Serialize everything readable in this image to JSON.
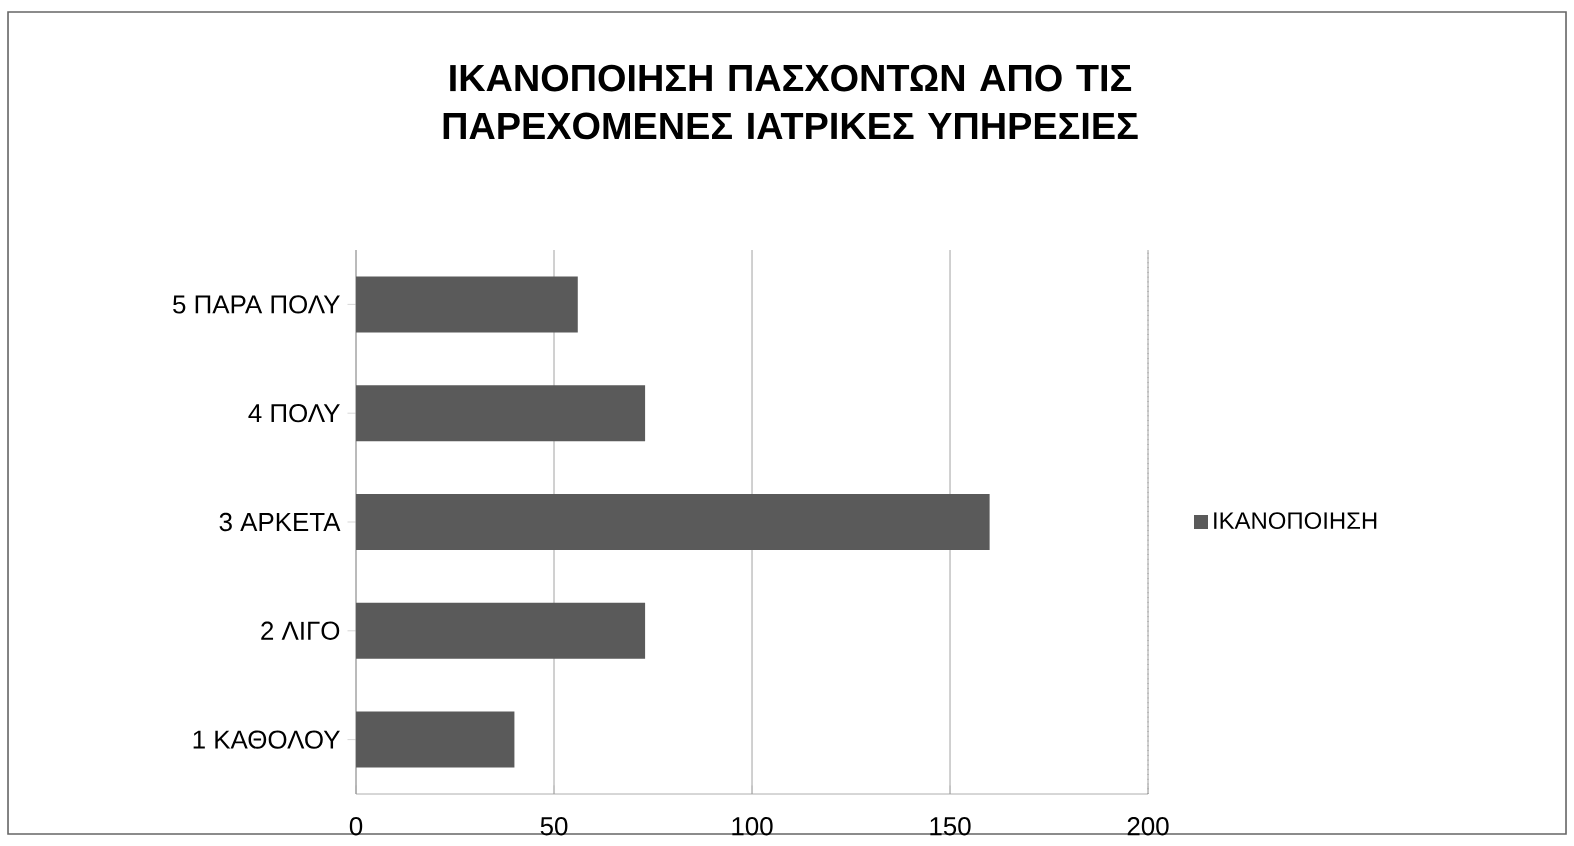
{
  "chart_data": {
    "type": "bar",
    "orientation": "horizontal",
    "title": "ΙΚΑΝΟΠΟΙΗΣΗ ΠΑΣΧΟΝΤΩΝ ΑΠΟ ΤΙΣ ΠΑΡΕΧΟΜΕΝΕΣ ΙΑΤΡΙΚΕΣ ΥΠΗΡΕΣΙΕΣ",
    "categories": [
      "5 ΠΑΡΑ ΠΟΛΥ",
      "4 ΠΟΛΥ",
      "3 ΑΡΚΕΤΑ",
      "2 ΛΙΓΟ",
      "1 ΚΑΘΟΛΟΥ"
    ],
    "series": [
      {
        "name": "ΙΚΑΝΟΠΟΙΗΣΗ",
        "color": "#5a5a5a",
        "values": [
          56,
          73,
          160,
          73,
          40
        ]
      }
    ],
    "xlim": [
      0,
      200
    ],
    "xticks": [
      0,
      50,
      100,
      150,
      200
    ],
    "grid": "x",
    "legend": "right"
  }
}
